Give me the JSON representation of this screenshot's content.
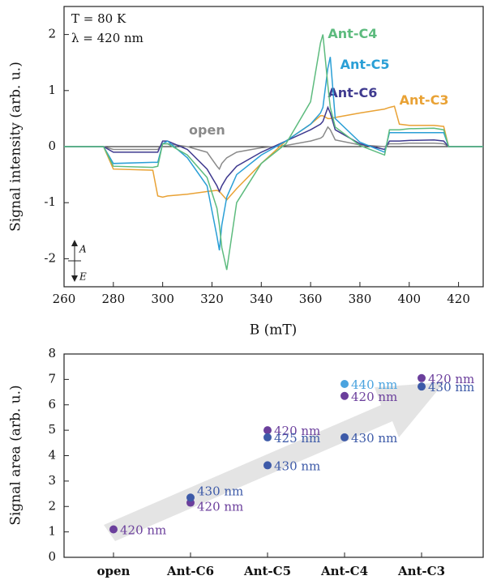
{
  "chart_data": [
    {
      "type": "line",
      "annotations": [
        "T = 80 K",
        "λ = 420 nm",
        "A",
        "E"
      ],
      "x_label": "B (mT)",
      "y_label": "Signal intensity (arb. u.)",
      "xlim": [
        260,
        430
      ],
      "xticks": [
        260,
        280,
        300,
        320,
        340,
        360,
        380,
        400,
        420
      ],
      "ylim": [
        -2.5,
        2.5
      ],
      "yticks": [
        2,
        1,
        0,
        -1,
        -2
      ],
      "x": [
        260,
        276,
        280,
        296,
        298,
        300,
        302,
        310,
        318,
        322,
        323,
        324,
        326,
        330,
        340,
        350,
        360,
        364,
        365,
        367,
        368,
        370,
        380,
        390,
        392,
        394,
        396,
        400,
        410,
        414,
        416,
        430
      ],
      "series": [
        {
          "name": "open",
          "color": "#8a8a8a",
          "values": [
            0,
            0,
            -0.05,
            -0.05,
            -0.05,
            0.05,
            0.05,
            0,
            -0.1,
            -0.35,
            -0.4,
            -0.3,
            -0.2,
            -0.1,
            -0.02,
            0.02,
            0.1,
            0.15,
            0.18,
            0.35,
            0.3,
            0.12,
            0.03,
            0,
            0.05,
            0.05,
            0.05,
            0.06,
            0.06,
            0.05,
            0,
            0
          ]
        },
        {
          "name": "Ant-C3",
          "color": "#e9a235",
          "values": [
            0,
            0,
            -0.4,
            -0.42,
            -0.88,
            -0.9,
            -0.88,
            -0.85,
            -0.8,
            -0.78,
            -0.8,
            -0.85,
            -0.95,
            -0.75,
            -0.3,
            0.1,
            0.4,
            0.55,
            0.55,
            0.5,
            0.5,
            0.52,
            0.6,
            0.67,
            0.7,
            0.72,
            0.4,
            0.38,
            0.38,
            0.36,
            0,
            0
          ]
        },
        {
          "name": "Ant-C6",
          "color": "#3f3a8f",
          "values": [
            0,
            0,
            -0.1,
            -0.1,
            -0.1,
            0.1,
            0.1,
            -0.05,
            -0.4,
            -0.7,
            -0.8,
            -0.7,
            -0.55,
            -0.35,
            -0.1,
            0.1,
            0.3,
            0.4,
            0.45,
            0.7,
            0.6,
            0.3,
            0.05,
            -0.05,
            0.1,
            0.1,
            0.1,
            0.11,
            0.12,
            0.1,
            0,
            0
          ]
        },
        {
          "name": "Ant-C5",
          "color": "#2a9fd6",
          "values": [
            0,
            0,
            -0.3,
            -0.28,
            -0.28,
            0.05,
            0.1,
            -0.2,
            -0.7,
            -1.6,
            -1.85,
            -1.4,
            -0.9,
            -0.5,
            -0.15,
            0.1,
            0.4,
            0.6,
            0.7,
            1.4,
            1.6,
            0.5,
            0.08,
            -0.1,
            0.25,
            0.25,
            0.25,
            0.25,
            0.25,
            0.25,
            0,
            0
          ]
        },
        {
          "name": "Ant-C4",
          "color": "#5dbb7e",
          "values": [
            0,
            0,
            -0.35,
            -0.37,
            -0.35,
            0.05,
            0.05,
            -0.15,
            -0.55,
            -1.1,
            -1.4,
            -1.8,
            -2.2,
            -1.0,
            -0.3,
            0.05,
            0.8,
            1.85,
            2.0,
            1.1,
            0.7,
            0.35,
            0.02,
            -0.15,
            0.3,
            0.3,
            0.3,
            0.32,
            0.33,
            0.3,
            0,
            0
          ]
        }
      ]
    },
    {
      "type": "scatter",
      "y_label": "Signal area (arb. u.)",
      "categories": [
        "open",
        "Ant-C6",
        "Ant-C5",
        "Ant-C4",
        "Ant-C3"
      ],
      "ylim": [
        0,
        8
      ],
      "yticks": [
        0,
        1,
        2,
        3,
        4,
        5,
        6,
        7,
        8
      ],
      "series": [
        {
          "name": "420 nm",
          "color": "#6b3f9c",
          "values": [
            1.1,
            2.15,
            5.0,
            6.35,
            7.05
          ]
        },
        {
          "name": "430 nm",
          "color": "#3d5aa8",
          "values": [
            null,
            2.35,
            3.62,
            4.72,
            6.72
          ]
        },
        {
          "name": "425 nm",
          "color": "#3d5aa8",
          "values": [
            null,
            null,
            4.72,
            null,
            null
          ]
        },
        {
          "name": "440 nm",
          "color": "#4aa3df",
          "values": [
            null,
            null,
            null,
            6.82,
            null
          ]
        }
      ]
    }
  ]
}
